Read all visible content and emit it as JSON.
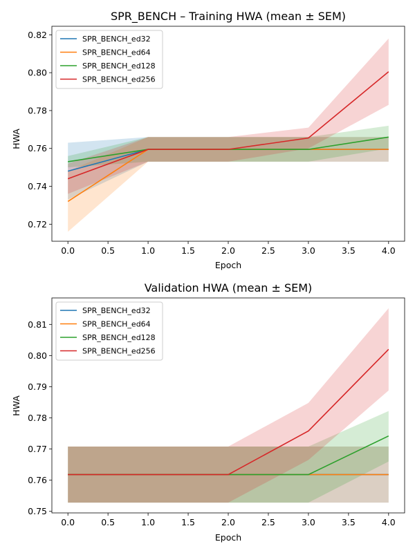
{
  "chart_data": [
    {
      "type": "line",
      "title": "SPR_BENCH – Training HWA (mean ± SEM)",
      "xlabel": "Epoch",
      "ylabel": "HWA",
      "x": [
        0,
        1,
        2,
        3,
        4
      ],
      "xlim": [
        -0.2,
        4.2
      ],
      "ylim": [
        0.711,
        0.8245
      ],
      "xticks": [
        "0.0",
        "0.5",
        "1.0",
        "1.5",
        "2.0",
        "2.5",
        "3.0",
        "3.5",
        "4.0"
      ],
      "yticks": [
        "0.72",
        "0.74",
        "0.76",
        "0.78",
        "0.80",
        "0.82"
      ],
      "legend_position": "top-left",
      "grid": false,
      "series": [
        {
          "name": "SPR_BENCH_ed32",
          "color": "#1f77b4",
          "values": [
            0.748,
            0.7595,
            0.7595,
            0.7595,
            0.7595
          ],
          "lower": [
            0.733,
            0.753,
            0.753,
            0.753,
            0.753
          ],
          "upper": [
            0.763,
            0.766,
            0.766,
            0.766,
            0.766
          ]
        },
        {
          "name": "SPR_BENCH_ed64",
          "color": "#ff7f0e",
          "values": [
            0.732,
            0.7595,
            0.7595,
            0.7595,
            0.7595
          ],
          "lower": [
            0.716,
            0.753,
            0.753,
            0.753,
            0.753
          ],
          "upper": [
            0.748,
            0.766,
            0.766,
            0.766,
            0.766
          ]
        },
        {
          "name": "SPR_BENCH_ed128",
          "color": "#2ca02c",
          "values": [
            0.753,
            0.7595,
            0.7595,
            0.7595,
            0.766
          ],
          "lower": [
            0.75,
            0.753,
            0.753,
            0.753,
            0.76
          ],
          "upper": [
            0.756,
            0.766,
            0.766,
            0.766,
            0.772
          ]
        },
        {
          "name": "SPR_BENCH_ed256",
          "color": "#d62728",
          "values": [
            0.744,
            0.7595,
            0.7595,
            0.7655,
            0.8005
          ],
          "lower": [
            0.736,
            0.753,
            0.753,
            0.76,
            0.783
          ],
          "upper": [
            0.752,
            0.766,
            0.766,
            0.771,
            0.818
          ]
        }
      ]
    },
    {
      "type": "line",
      "title": "Validation HWA (mean ± SEM)",
      "xlabel": "Epoch",
      "ylabel": "HWA",
      "x": [
        0,
        1,
        2,
        3,
        4
      ],
      "xlim": [
        -0.2,
        4.2
      ],
      "ylim": [
        0.7495,
        0.8185
      ],
      "xticks": [
        "0.0",
        "0.5",
        "1.0",
        "1.5",
        "2.0",
        "2.5",
        "3.0",
        "3.5",
        "4.0"
      ],
      "yticks": [
        "0.75",
        "0.76",
        "0.77",
        "0.78",
        "0.79",
        "0.80",
        "0.81"
      ],
      "legend_position": "top-left",
      "grid": false,
      "series": [
        {
          "name": "SPR_BENCH_ed32",
          "color": "#1f77b4",
          "values": [
            0.7618,
            0.7618,
            0.7618,
            0.7618,
            0.7618
          ],
          "lower": [
            0.7528,
            0.7528,
            0.7528,
            0.7528,
            0.7528
          ],
          "upper": [
            0.7708,
            0.7708,
            0.7708,
            0.7708,
            0.7708
          ]
        },
        {
          "name": "SPR_BENCH_ed64",
          "color": "#ff7f0e",
          "values": [
            0.7618,
            0.7618,
            0.7618,
            0.7618,
            0.7618
          ],
          "lower": [
            0.7528,
            0.7528,
            0.7528,
            0.7528,
            0.7528
          ],
          "upper": [
            0.7708,
            0.7708,
            0.7708,
            0.7708,
            0.7708
          ]
        },
        {
          "name": "SPR_BENCH_ed128",
          "color": "#2ca02c",
          "values": [
            0.7618,
            0.7618,
            0.7618,
            0.7618,
            0.7742
          ],
          "lower": [
            0.7528,
            0.7528,
            0.7528,
            0.7528,
            0.766
          ],
          "upper": [
            0.7708,
            0.7708,
            0.7708,
            0.7708,
            0.7822
          ]
        },
        {
          "name": "SPR_BENCH_ed256",
          "color": "#d62728",
          "values": [
            0.7618,
            0.7618,
            0.7618,
            0.7758,
            0.802
          ],
          "lower": [
            0.7528,
            0.7528,
            0.7528,
            0.7665,
            0.7888
          ],
          "upper": [
            0.7708,
            0.7708,
            0.7708,
            0.7848,
            0.8152
          ]
        }
      ]
    }
  ]
}
